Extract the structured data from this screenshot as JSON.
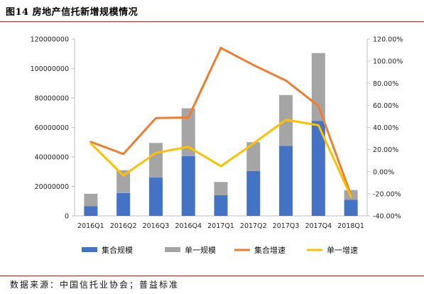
{
  "figure": {
    "title": "图14  房地产信托新增规模情况",
    "source": "数据来源：中国信托业协会；普益标准"
  },
  "chart_data": {
    "type": "bar",
    "stacked": true,
    "categories": [
      "2016Q1",
      "2016Q2",
      "2016Q3",
      "2016Q4",
      "2017Q1",
      "2017Q2",
      "2017Q3",
      "2017Q4",
      "2018Q1"
    ],
    "series": [
      {
        "name": "集合规模",
        "kind": "bar",
        "axis": "left",
        "color": "#4472c4",
        "values": [
          6500000,
          15500000,
          26000000,
          40500000,
          14000000,
          30500000,
          47500000,
          64500000,
          11000000
        ]
      },
      {
        "name": "单一规模",
        "kind": "bar",
        "axis": "left",
        "color": "#a5a5a5",
        "values": [
          8500000,
          15500000,
          23500000,
          32500000,
          9000000,
          19500000,
          34500000,
          46000000,
          6500000
        ]
      },
      {
        "name": "集合增速",
        "kind": "line",
        "axis": "right",
        "color": "#ed7d31",
        "values": [
          0.27,
          0.16,
          0.485,
          0.49,
          1.12,
          0.965,
          0.825,
          0.595,
          -0.21
        ]
      },
      {
        "name": "单一增速",
        "kind": "line",
        "axis": "right",
        "color": "#ffc000",
        "values": [
          0.255,
          -0.035,
          0.17,
          0.225,
          0.05,
          0.255,
          0.47,
          0.42,
          -0.225
        ]
      }
    ],
    "ylim_left": [
      0,
      120000000
    ],
    "yticks_left": [
      "0",
      "20000000",
      "40000000",
      "60000000",
      "80000000",
      "100000000",
      "120000000"
    ],
    "ylim_right": [
      -0.4,
      1.2
    ],
    "yticks_right": [
      "-40.00%",
      "-20.00%",
      "0.00%",
      "20.00%",
      "40.00%",
      "60.00%",
      "80.00%",
      "100.00%",
      "120.00%"
    ],
    "grid": false,
    "legend_position": "bottom"
  }
}
